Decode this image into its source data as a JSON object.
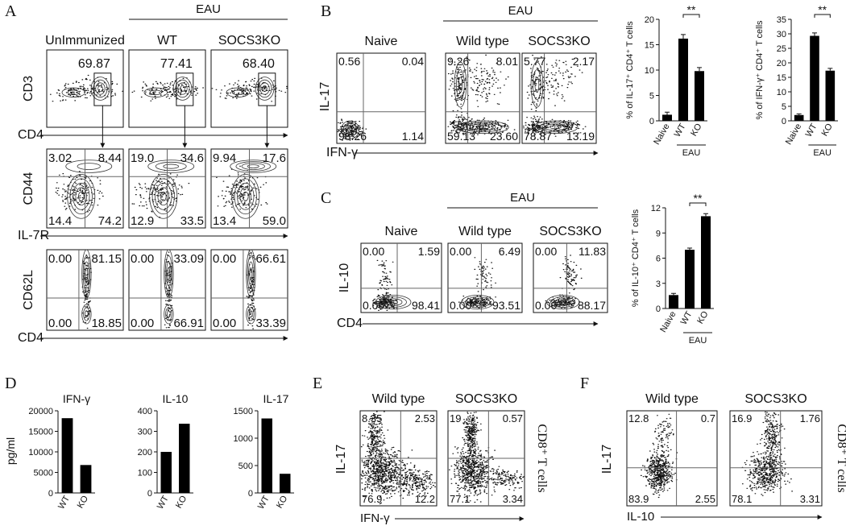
{
  "panels": {
    "A": {
      "label": "A",
      "group": "EAU",
      "columns": [
        "UnImmunized",
        "WT",
        "SOCS3KO"
      ],
      "rows": [
        {
          "y_label": "CD3",
          "x_label": "CD4",
          "gates": [
            "69.87",
            "77.41",
            "68.40"
          ]
        },
        {
          "y_label": "CD44",
          "x_label": "IL-7R",
          "quadrants": [
            [
              "3.02",
              "8.44",
              "14.4",
              "74.2"
            ],
            [
              "19.0",
              "34.6",
              "12.9",
              "33.5"
            ],
            [
              "9.94",
              "17.6",
              "13.4",
              "59.0"
            ]
          ]
        },
        {
          "y_label": "CD62L",
          "x_label": "CD4",
          "quadrants": [
            [
              "0.00",
              "81.15",
              "0.00",
              "18.85"
            ],
            [
              "0.00",
              "33.09",
              "0.00",
              "66.91"
            ],
            [
              "0.00",
              "66.61",
              "0.00",
              "33.39"
            ]
          ]
        }
      ]
    },
    "B": {
      "label": "B",
      "group": "EAU",
      "columns": [
        "Naive",
        "Wild type",
        "SOCS3KO"
      ],
      "y_label": "IL-17",
      "x_label": "IFN-γ",
      "quadrants": [
        [
          "0.56",
          "0.04",
          "98.26",
          "1.14"
        ],
        [
          "9.26",
          "8.01",
          "59.13",
          "23.60"
        ],
        [
          "5.77",
          "2.17",
          "78.87",
          "13.19"
        ]
      ]
    },
    "C": {
      "label": "C",
      "group": "EAU",
      "columns": [
        "Naive",
        "Wild type",
        "SOCS3KO"
      ],
      "y_label": "IL-10",
      "x_label": "CD4",
      "quadrants": [
        [
          "0.00",
          "1.59",
          "0.00",
          "98.41"
        ],
        [
          "0.00",
          "6.49",
          "0.00",
          "93.51"
        ],
        [
          "0.00",
          "11.83",
          "0.00",
          "88.17"
        ]
      ]
    },
    "D": {
      "label": "D",
      "y_label": "pg/ml"
    },
    "E": {
      "label": "E",
      "columns": [
        "Wild type",
        "SOCS3KO"
      ],
      "y_label": "IL-17",
      "x_label": "IFN-γ",
      "side_label": "CD8⁺ T cells",
      "quadrants": [
        [
          "8.35",
          "2.53",
          "76.9",
          "12.2"
        ],
        [
          "19",
          "0.57",
          "77.1",
          "3.34"
        ]
      ]
    },
    "F": {
      "label": "F",
      "columns": [
        "Wild type",
        "SOCS3KO"
      ],
      "y_label": "IL-17",
      "x_label": "IL-10",
      "side_label": "CD8⁺ T cells",
      "quadrants": [
        [
          "12.8",
          "0.7",
          "83.9",
          "2.55"
        ],
        [
          "16.9",
          "1.76",
          "78.1",
          "3.31"
        ]
      ]
    }
  },
  "chart_data": [
    {
      "type": "bar",
      "y_label": "% of IL-17⁺ CD4⁺ T cells",
      "categories": [
        "Naive",
        "WT",
        "KO"
      ],
      "values": [
        1.2,
        16.2,
        9.8
      ],
      "errors": [
        0.5,
        0.8,
        0.7
      ],
      "color": "#000000",
      "ylim": [
        0,
        20
      ],
      "yticks": [
        0,
        5,
        10,
        15,
        20
      ],
      "group": "EAU",
      "annotation": "**"
    },
    {
      "type": "bar",
      "y_label": "% of IFN-γ⁺ CD4⁺ T cells",
      "categories": [
        "Naive",
        "WT",
        "KO"
      ],
      "values": [
        2.0,
        29.3,
        17.3
      ],
      "errors": [
        0.4,
        1.0,
        0.8
      ],
      "color": "#000000",
      "ylim": [
        0,
        35
      ],
      "yticks": [
        0,
        5,
        10,
        15,
        20,
        25,
        30,
        35
      ],
      "group": "EAU",
      "annotation": "**"
    },
    {
      "type": "bar",
      "y_label": "% of IL-10⁺ CD4⁺ T cells",
      "categories": [
        "Naive",
        "WT",
        "KO"
      ],
      "values": [
        1.6,
        7.0,
        11.0
      ],
      "errors": [
        0.2,
        0.2,
        0.3
      ],
      "color": "#000000",
      "ylim": [
        0,
        12
      ],
      "yticks": [
        0,
        3,
        6,
        9,
        12
      ],
      "group": "EAU",
      "annotation": "**"
    },
    {
      "type": "bar",
      "title": "IFN-γ",
      "categories": [
        "WT",
        "KO"
      ],
      "values": [
        18200,
        6800
      ],
      "color": "#000000",
      "ylim": [
        0,
        20000
      ],
      "yticks": [
        0,
        5000,
        10000,
        15000,
        20000
      ]
    },
    {
      "type": "bar",
      "title": "IL-10",
      "categories": [
        "WT",
        "KO"
      ],
      "values": [
        200,
        337
      ],
      "color": "#000000",
      "ylim": [
        0,
        400
      ],
      "yticks": [
        0,
        100,
        200,
        300,
        400
      ]
    },
    {
      "type": "bar",
      "title": "IL-17",
      "categories": [
        "WT",
        "KO"
      ],
      "values": [
        1360,
        350
      ],
      "color": "#000000",
      "ylim": [
        0,
        1500
      ],
      "yticks": [
        0,
        500,
        1000,
        1500
      ]
    }
  ]
}
